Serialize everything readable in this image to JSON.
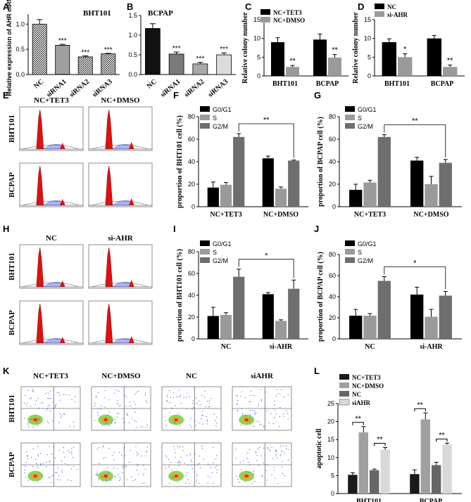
{
  "panels": {
    "A": {
      "letter": "A",
      "chart_data": {
        "type": "bar",
        "title": "BHT101",
        "ylabel": "Relative expression of AHR mRNA",
        "categories": [
          "NC",
          "siRNA1",
          "siRNA2",
          "siRNA3"
        ],
        "values": [
          1.0,
          0.58,
          0.35,
          0.41
        ],
        "errors": [
          0.09,
          0.02,
          0.02,
          0.01
        ],
        "sig": [
          "",
          "***",
          "***",
          "***"
        ],
        "ylim": [
          0,
          1.2
        ],
        "yticks": [
          "0.0",
          "0.5",
          "1.0"
        ],
        "colors": [
          "#2b2b2b",
          "#9a9a9a",
          "#d0d0d0",
          "#bdbdbd"
        ]
      }
    },
    "B": {
      "letter": "B",
      "chart_data": {
        "type": "bar",
        "title": "BCPAP",
        "categories": [
          "NC",
          "siRNA1",
          "siRNA2",
          "siRNA3"
        ],
        "values": [
          1.17,
          0.52,
          0.27,
          0.5
        ],
        "errors": [
          0.12,
          0.05,
          0.04,
          0.05
        ],
        "sig": [
          "",
          "***",
          "***",
          "***"
        ],
        "ylim": [
          0,
          1.5
        ],
        "yticks": [
          "0.0",
          "0.5",
          "1.0",
          "1.5"
        ],
        "colors": [
          "#111111",
          "#7a7a7a",
          "#a8a8a8",
          "#dcdcdc"
        ]
      }
    },
    "C": {
      "letter": "C",
      "chart_data": {
        "type": "bar",
        "ylabel": "Relative colony number",
        "categories": [
          "BHT101",
          "BCPAP"
        ],
        "series": [
          {
            "name": "NC+TET3",
            "values": [
              9,
              9.7
            ],
            "errors": [
              1.2,
              1.5
            ]
          },
          {
            "name": "NC+DMSO",
            "values": [
              2.4,
              4.9
            ],
            "errors": [
              0.4,
              0.8
            ]
          }
        ],
        "sig": [
          "**",
          "**"
        ],
        "ylim": [
          0,
          15
        ],
        "yticks": [
          "0",
          "5",
          "10",
          "15"
        ],
        "colors": [
          "#000000",
          "#9a9a9a"
        ]
      }
    },
    "D": {
      "letter": "D",
      "chart_data": {
        "type": "bar",
        "ylabel": "Relative colony number",
        "categories": [
          "BHT101",
          "BCPAP"
        ],
        "series": [
          {
            "name": "NC",
            "values": [
              9,
              10
            ],
            "errors": [
              0.9,
              0.8
            ]
          },
          {
            "name": "si-AHR",
            "values": [
              5,
              2.4
            ],
            "errors": [
              0.9,
              0.5
            ]
          }
        ],
        "sig": [
          "*",
          "**"
        ],
        "ylim": [
          0,
          15
        ],
        "yticks": [
          "0",
          "5",
          "10",
          "15"
        ],
        "colors": [
          "#000000",
          "#9a9a9a"
        ]
      }
    },
    "F": {
      "letter": "F",
      "chart_data": {
        "type": "bar",
        "ylabel": "proportion of BHT101 cell (%)",
        "categories": [
          "NC+TET3",
          "NC+DMSO"
        ],
        "series": [
          {
            "name": "G0/G1",
            "values": [
              17,
              43
            ],
            "errors": [
              5,
              2
            ]
          },
          {
            "name": "S",
            "values": [
              19.5,
              16
            ],
            "errors": [
              2,
              1.5
            ]
          },
          {
            "name": "G2/M",
            "values": [
              62,
              41
            ],
            "errors": [
              3,
              0.5
            ]
          }
        ],
        "bracket": "**",
        "ylim": [
          0,
          80
        ],
        "yticks": [
          "0",
          "20",
          "40",
          "60",
          "80"
        ],
        "colors": [
          "#000000",
          "#9a9a9a",
          "#6e6e6e"
        ]
      }
    },
    "G": {
      "letter": "G",
      "chart_data": {
        "type": "bar",
        "ylabel": "proportion of BCPAP cell (%)",
        "categories": [
          "NC+TET3",
          "NC+DMSO"
        ],
        "series": [
          {
            "name": "G0/G1",
            "values": [
              15,
              41
            ],
            "errors": [
              5,
              3
            ]
          },
          {
            "name": "S",
            "values": [
              21.5,
              20
            ],
            "errors": [
              2,
              7
            ]
          },
          {
            "name": "G2/M",
            "values": [
              62,
              39
            ],
            "errors": [
              2,
              3
            ]
          }
        ],
        "bracket": "**",
        "ylim": [
          0,
          80
        ],
        "yticks": [
          "0",
          "20",
          "40",
          "60",
          "80"
        ],
        "colors": [
          "#000000",
          "#9a9a9a",
          "#6e6e6e"
        ]
      }
    },
    "I": {
      "letter": "I",
      "chart_data": {
        "type": "bar",
        "ylabel": "proportion of BHT101 cell (%)",
        "categories": [
          "NC",
          "si-AHR"
        ],
        "series": [
          {
            "name": "G0/G1",
            "values": [
              21,
              41
            ],
            "errors": [
              8,
              1.5
            ]
          },
          {
            "name": "S",
            "values": [
              22,
              16.5
            ],
            "errors": [
              2,
              1
            ]
          },
          {
            "name": "G2/M",
            "values": [
              57,
              46
            ],
            "errors": [
              7,
              8
            ]
          }
        ],
        "bracket": "*",
        "ylim": [
          0,
          80
        ],
        "yticks": [
          "0",
          "20",
          "40",
          "60",
          "80"
        ],
        "colors": [
          "#000000",
          "#9a9a9a",
          "#6e6e6e"
        ]
      }
    },
    "J": {
      "letter": "J",
      "chart_data": {
        "type": "bar",
        "ylabel": "proportion of BCPAP cell (%)",
        "categories": [
          "NC",
          "si-AHR"
        ],
        "series": [
          {
            "name": "G0/G1",
            "values": [
              22,
              42
            ],
            "errors": [
              6,
              7
            ]
          },
          {
            "name": "S",
            "values": [
              22,
              21
            ],
            "errors": [
              2,
              7
            ]
          },
          {
            "name": "G2/M",
            "values": [
              55,
              41
            ],
            "errors": [
              4,
              4
            ]
          }
        ],
        "bracket": "*",
        "ylim": [
          0,
          80
        ],
        "yticks": [
          "0",
          "20",
          "40",
          "60",
          "80"
        ],
        "colors": [
          "#000000",
          "#9a9a9a",
          "#6e6e6e"
        ]
      }
    },
    "L": {
      "letter": "L",
      "chart_data": {
        "type": "bar",
        "ylabel": "apoptotic cell",
        "categories": [
          "BHT101",
          "BCPAP"
        ],
        "series": [
          {
            "name": "NC+TET3",
            "values": [
              5.2,
              5.4
            ],
            "errors": [
              0.6,
              1.2
            ]
          },
          {
            "name": "NC+DMSO",
            "values": [
              17,
              20.6
            ],
            "errors": [
              1.6,
              1.8
            ]
          },
          {
            "name": "NC",
            "values": [
              6.5,
              7.9
            ],
            "errors": [
              0.3,
              0.8
            ]
          },
          {
            "name": "siAHR",
            "values": [
              12.2,
              13.6
            ],
            "errors": [
              0.6,
              0.4
            ]
          }
        ],
        "sig": [
          "**",
          "**",
          "**",
          "**"
        ],
        "ylim": [
          0,
          25
        ],
        "yticks": [
          "0",
          "5",
          "10",
          "15",
          "20",
          "25"
        ],
        "colors": [
          "#1a1a1a",
          "#a0a0a0",
          "#666666",
          "#d9d9d9"
        ]
      }
    }
  },
  "flow": {
    "E": {
      "letter": "E",
      "cols": [
        "NC+TET3",
        "NC+DMSO"
      ],
      "rows": [
        "BHT101",
        "BCPAP"
      ]
    },
    "H": {
      "letter": "H",
      "cols": [
        "NC",
        "si-AHR"
      ],
      "rows": [
        "BHT101",
        "BCPAP"
      ]
    },
    "K": {
      "letter": "K",
      "cols": [
        "NC+TET3",
        "NC+DMSO",
        "NC",
        "siAHR"
      ],
      "rows": [
        "BHT101",
        "BCPAP"
      ]
    }
  }
}
